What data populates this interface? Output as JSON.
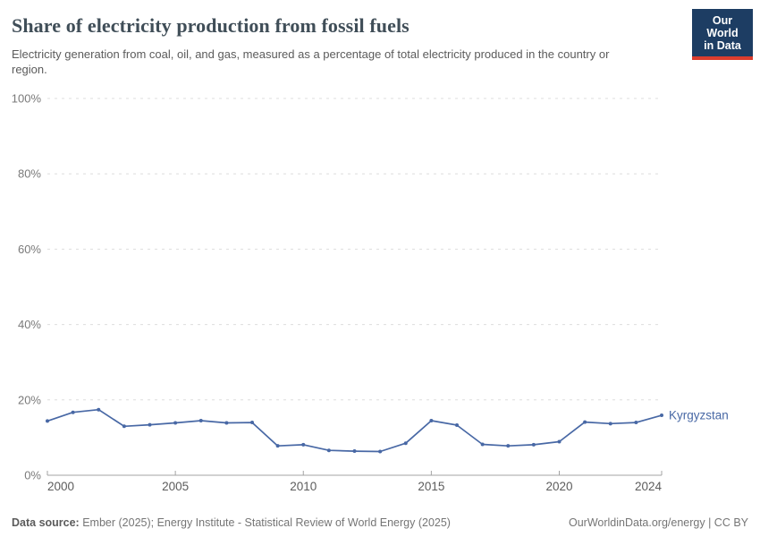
{
  "header": {
    "title": "Share of electricity production from fossil fuels",
    "subtitle": "Electricity generation from coal, oil, and gas, measured as a percentage of total electricity produced in the country or region.",
    "logo": {
      "line1": "Our World",
      "line2": "in Data",
      "bg_color": "#1d3d63",
      "accent_color": "#dc3d2e"
    }
  },
  "chart_data": {
    "type": "line",
    "title": "Share of electricity production from fossil fuels",
    "x": [
      2000,
      2001,
      2002,
      2003,
      2004,
      2005,
      2006,
      2007,
      2008,
      2009,
      2010,
      2011,
      2012,
      2013,
      2014,
      2015,
      2016,
      2017,
      2018,
      2019,
      2020,
      2021,
      2022,
      2023,
      2024
    ],
    "series": [
      {
        "name": "Kyrgyzstan",
        "color": "#4868a5",
        "values": [
          14.4,
          16.7,
          17.4,
          13.0,
          13.4,
          13.9,
          14.5,
          13.9,
          14.0,
          7.8,
          8.1,
          6.6,
          6.4,
          6.3,
          8.5,
          14.5,
          13.3,
          8.2,
          7.8,
          8.1,
          8.9,
          14.1,
          13.7,
          14.0,
          15.9
        ]
      }
    ],
    "xlabel": "",
    "ylabel": "",
    "ylim": [
      0,
      100
    ],
    "yticks": [
      0,
      20,
      40,
      60,
      80,
      100
    ],
    "ytick_suffix": "%",
    "xticks": [
      2000,
      2005,
      2010,
      2015,
      2020,
      2024
    ],
    "grid": "horizontal-dashed",
    "legend_position": "end-of-line",
    "axis_color": "#a3a3a3",
    "gridline_color": "#dddddd",
    "xtick_label_color": "#5c5c5c",
    "ytick_label_color": "#7a7a7a"
  },
  "footer": {
    "datasource_label": "Data source:",
    "datasource_text": "Ember (2025); Energy Institute - Statistical Review of World Energy (2025)",
    "link": "OurWorldinData.org/energy | CC BY"
  }
}
